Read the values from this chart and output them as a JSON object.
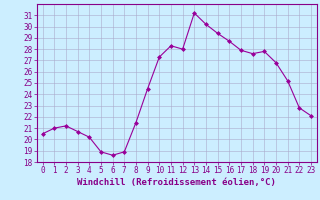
{
  "x": [
    0,
    1,
    2,
    3,
    4,
    5,
    6,
    7,
    8,
    9,
    10,
    11,
    12,
    13,
    14,
    15,
    16,
    17,
    18,
    19,
    20,
    21,
    22,
    23
  ],
  "y": [
    20.5,
    21.0,
    21.2,
    20.7,
    20.2,
    18.9,
    18.6,
    18.9,
    21.5,
    24.5,
    27.3,
    28.3,
    28.0,
    31.2,
    30.2,
    29.4,
    28.7,
    27.9,
    27.6,
    27.8,
    26.8,
    25.2,
    22.8,
    22.1
  ],
  "line_color": "#990099",
  "marker": "D",
  "marker_size": 2,
  "bg_color": "#cceeff",
  "grid_color": "#aaaacc",
  "xlabel": "Windchill (Refroidissement éolien,°C)",
  "xlabel_fontsize": 6.5,
  "ylim": [
    18,
    32
  ],
  "xlim": [
    -0.5,
    23.5
  ],
  "yticks": [
    18,
    19,
    20,
    21,
    22,
    23,
    24,
    25,
    26,
    27,
    28,
    29,
    30,
    31
  ],
  "xticks": [
    0,
    1,
    2,
    3,
    4,
    5,
    6,
    7,
    8,
    9,
    10,
    11,
    12,
    13,
    14,
    15,
    16,
    17,
    18,
    19,
    20,
    21,
    22,
    23
  ],
  "tick_fontsize": 5.5,
  "tick_color": "#880088",
  "spine_color": "#880088"
}
